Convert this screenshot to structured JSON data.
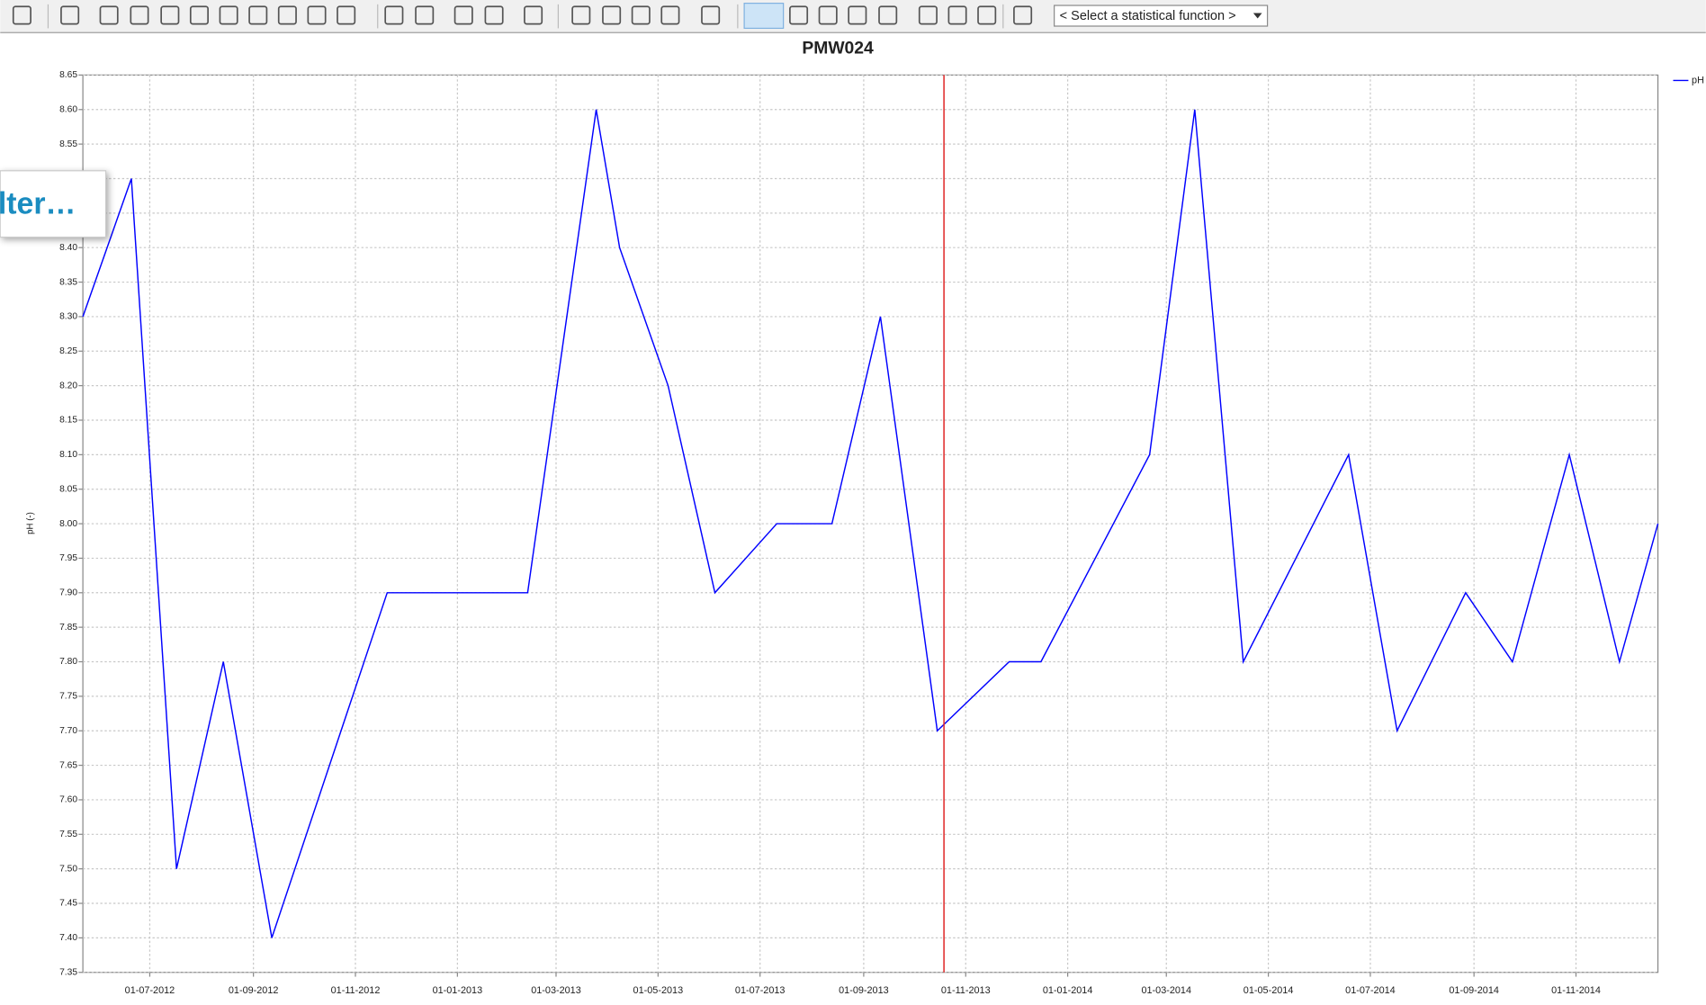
{
  "toolbar": {
    "function_select": "< Select a statistical function >"
  },
  "overlay_text": "lter…",
  "chart_data": {
    "type": "line",
    "title": "PMW024",
    "y_label": "pH (-)",
    "x": [
      "22-05-2012",
      "20-06-2012",
      "17-07-2012",
      "14-08-2012",
      "12-09-2012",
      "20-11-2012",
      "12-02-2013",
      "25-03-2013",
      "08-04-2013",
      "07-05-2013",
      "04-06-2013",
      "11-07-2013",
      "13-08-2013",
      "11-09-2013",
      "15-10-2013",
      "27-11-2013",
      "16-12-2013",
      "19-02-2014",
      "18-03-2014",
      "16-04-2014",
      "18-06-2014",
      "17-07-2014",
      "27-08-2014",
      "24-09-2014",
      "28-10-2014",
      "27-11-2014",
      "20-12-2014"
    ],
    "series": [
      {
        "name": "pH",
        "color": "#0000ff",
        "values": [
          8.3,
          8.5,
          7.5,
          7.8,
          7.4,
          7.9,
          7.9,
          8.6,
          8.4,
          8.2,
          7.9,
          8.0,
          8.0,
          8.3,
          7.7,
          7.8,
          7.8,
          8.1,
          8.6,
          7.8,
          8.1,
          7.7,
          7.9,
          7.8,
          8.1,
          7.8,
          8.0
        ]
      }
    ],
    "xlim": [
      "22-05-2012",
      "20-12-2014"
    ],
    "xticks": [
      "01-07-2012",
      "01-09-2012",
      "01-11-2012",
      "01-01-2013",
      "01-03-2013",
      "01-05-2013",
      "01-07-2013",
      "01-09-2013",
      "01-11-2013",
      "01-01-2014",
      "01-03-2014",
      "01-05-2014",
      "01-07-2014",
      "01-09-2014",
      "01-11-2014"
    ],
    "ylim": [
      7.35,
      8.65
    ],
    "yticks": [
      7.35,
      {
        "value": 7.4,
        "label": "7.40"
      },
      7.45,
      {
        "value": 7.5,
        "label": "7.50"
      },
      7.55,
      {
        "value": 7.6,
        "label": "7.60"
      },
      7.65,
      {
        "value": 7.7,
        "label": "7.70"
      },
      7.75,
      {
        "value": 7.8,
        "label": "7.80"
      },
      7.85,
      {
        "value": 7.9,
        "label": "7.90"
      },
      7.95,
      {
        "value": 8.0,
        "label": "8.00"
      },
      8.05,
      {
        "value": 8.1,
        "label": "8.10"
      },
      8.15,
      {
        "value": 8.2,
        "label": "8.20"
      },
      8.25,
      {
        "value": 8.3,
        "label": "8.30"
      },
      8.35,
      {
        "value": 8.4,
        "label": "8.40"
      },
      8.45,
      {
        "value": 8.5,
        "label": "8.50"
      },
      8.55,
      {
        "value": 8.6,
        "label": "8.60"
      },
      8.65
    ],
    "grid": true,
    "vline": {
      "x": "19-10-2013",
      "color": "#e03030"
    },
    "legend": "right"
  }
}
